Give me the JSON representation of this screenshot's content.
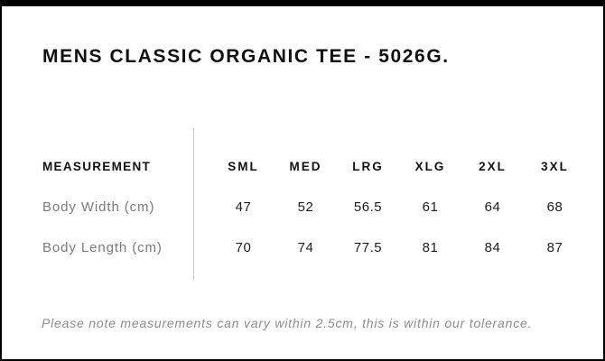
{
  "page": {
    "title": "MENS CLASSIC ORGANIC TEE - 5026G.",
    "note": "Please note measurements can vary within 2.5cm, this is within our tolerance."
  },
  "size_chart": {
    "measurement_header": "MEASUREMENT",
    "sizes": [
      "SML",
      "MED",
      "LRG",
      "XLG",
      "2XL",
      "3XL"
    ],
    "rows": [
      {
        "label": "Body Width (cm)",
        "values": [
          "47",
          "52",
          "56.5",
          "61",
          "64",
          "68"
        ]
      },
      {
        "label": "Body Length (cm)",
        "values": [
          "70",
          "74",
          "77.5",
          "81",
          "84",
          "87"
        ]
      }
    ]
  },
  "colors": {
    "frame": "#000000",
    "background": "#ffffff",
    "title_text": "#111111",
    "header_text": "#111111",
    "label_text": "#7a7a7e",
    "value_text": "#1d1d1d",
    "divider": "#c9c9c9",
    "note_text": "#8b8b8b"
  }
}
